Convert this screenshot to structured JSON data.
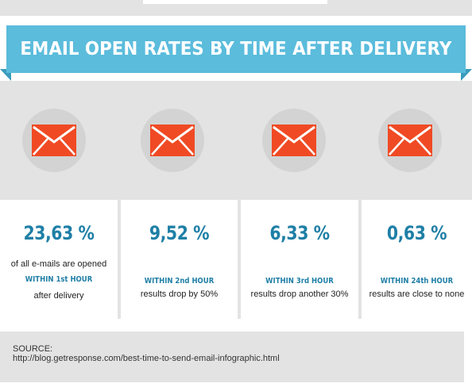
{
  "banner": {
    "title": "EMAIL OPEN RATES BY TIME AFTER DELIVERY"
  },
  "icons": [
    "envelope-icon",
    "envelope-icon",
    "envelope-icon",
    "envelope-icon"
  ],
  "colors": {
    "banner": "#5bbcdc",
    "accent": "#1f7fa6",
    "envelope": "#f04a24",
    "panel": "#e3e3e3"
  },
  "stats": [
    {
      "value": "23,63 %",
      "line1": "of all e-mails are opened",
      "line2": "WITHIN 1st HOUR",
      "line3": "after delivery"
    },
    {
      "value": "9,52 %",
      "line1": "WITHIN 2nd HOUR",
      "line2": "results drop by 50%"
    },
    {
      "value": "6,33 %",
      "line1": "WITHIN 3rd HOUR",
      "line2": "results drop another 30%"
    },
    {
      "value": "0,63 %",
      "line1": "WITHIN 24th HOUR",
      "line2": "results are close to none"
    }
  ],
  "source": {
    "label": "SOURCE:",
    "url": "http://blog.getresponse.com/best-time-to-send-email-infographic.html"
  }
}
